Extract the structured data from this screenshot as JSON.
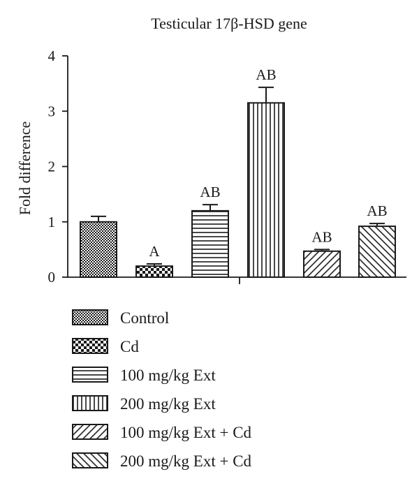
{
  "chart_data": {
    "type": "bar",
    "title": "Testicular 17β-HSD gene",
    "ylabel": "Fold difference",
    "xlabel": "",
    "ylim": [
      0,
      4
    ],
    "yticks": [
      0,
      1,
      2,
      3,
      4
    ],
    "grid": false,
    "legend_position": "bottom",
    "categories": [
      "Control",
      "Cd",
      "100 mg/kg Ext",
      "200 mg/kg Ext",
      "100 mg/kg Ext + Cd",
      "200 mg/kg Ext + Cd"
    ],
    "values": [
      1.0,
      0.2,
      1.2,
      3.15,
      0.47,
      0.92
    ],
    "errors": [
      0.1,
      0.04,
      0.11,
      0.28,
      0.03,
      0.05
    ],
    "annotations": [
      "",
      "A",
      "AB",
      "AB",
      "AB",
      "AB"
    ],
    "patterns": [
      "fine-dots",
      "checker",
      "horizontal-lines",
      "vertical-lines",
      "diagonal-up",
      "diagonal-down"
    ]
  }
}
